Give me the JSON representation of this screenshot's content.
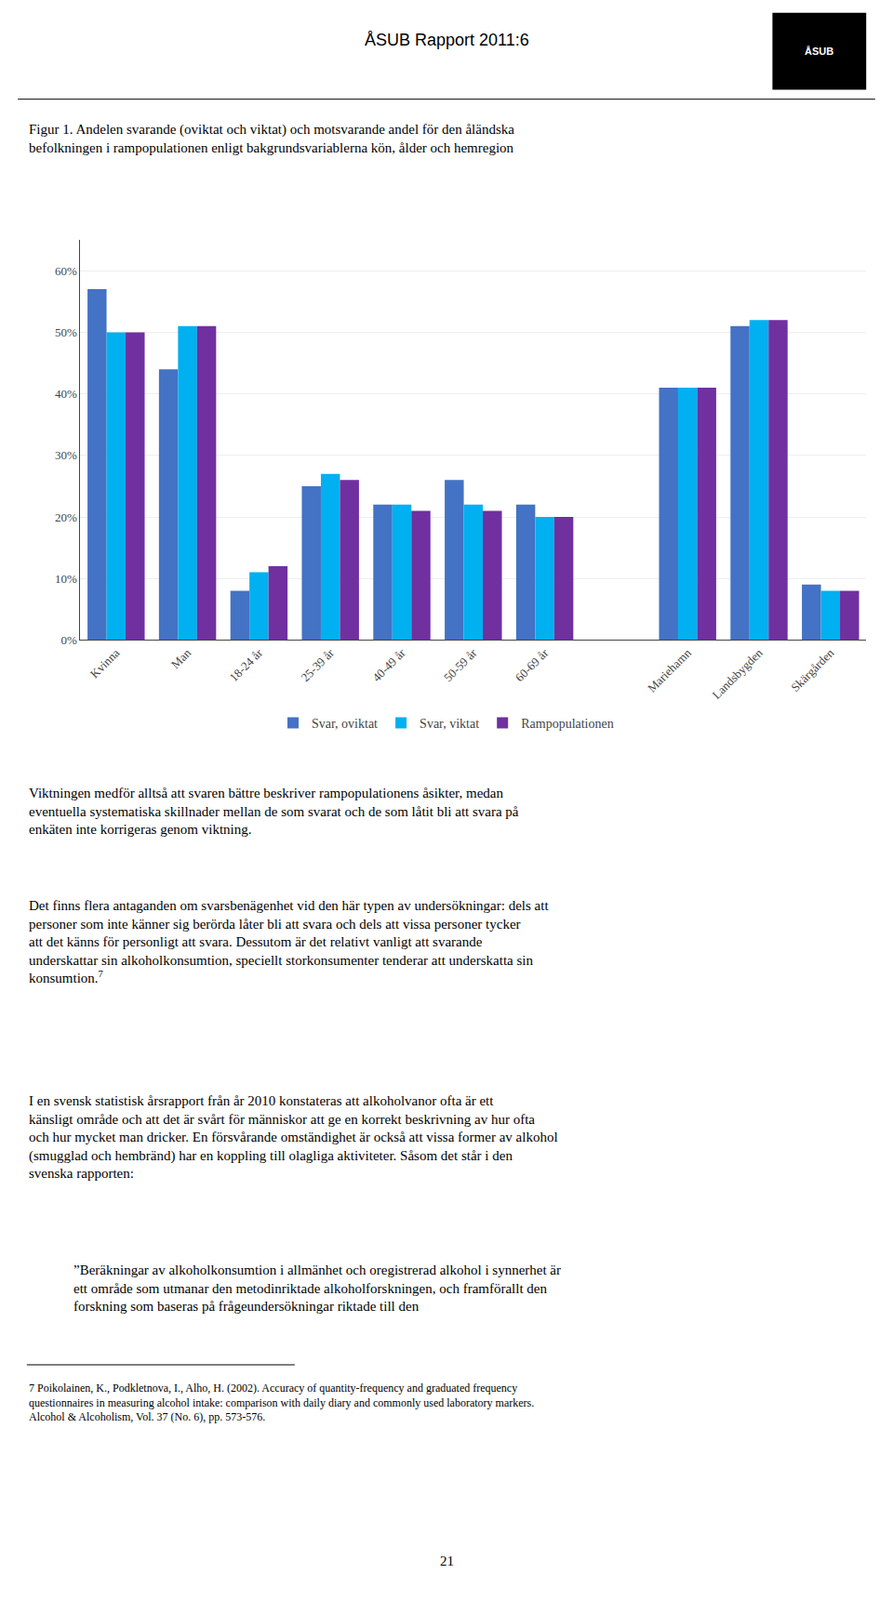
{
  "chart_data": {
    "type": "bar",
    "title": "Figur 1. Andelen svarande (oviktat och viktat) och motsvarande andel för den åländska befolkningen i rampopulationen enligt bakgrundsvariablerna kön, ålder och hemregion",
    "categories": [
      "Kvinna",
      "Man",
      "18-24 år",
      "25-39 år",
      "40-49 år",
      "50-59 år",
      "60-69 år",
      null,
      "Mariehamn",
      "Landsbygden",
      "Skärgården"
    ],
    "series": [
      {
        "name": "Svar, oviktat",
        "color": "#4472C4",
        "values": [
          0.57,
          0.44,
          0.08,
          0.25,
          0.22,
          0.26,
          0.22,
          null,
          0.41,
          0.51,
          0.09
        ]
      },
      {
        "name": "Svar, viktat",
        "color": "#00B0F0",
        "values": [
          0.5,
          0.51,
          0.11,
          0.27,
          0.22,
          0.22,
          0.2,
          null,
          0.41,
          0.52,
          0.08
        ]
      },
      {
        "name": "Rampopulationen",
        "color": "#7030A0",
        "values": [
          0.5,
          0.51,
          0.12,
          0.26,
          0.21,
          0.21,
          0.2,
          null,
          0.41,
          0.52,
          0.08
        ]
      }
    ],
    "ylim": [
      0,
      0.65
    ],
    "yticks": [
      {
        "value": 0.0,
        "label": "0%"
      },
      {
        "value": 0.1,
        "label": "10%"
      },
      {
        "value": 0.2,
        "label": "20%"
      },
      {
        "value": 0.3,
        "label": "30%"
      },
      {
        "value": 0.4,
        "label": "40%"
      },
      {
        "value": 0.5,
        "label": "50%"
      },
      {
        "value": 0.6,
        "label": "60%"
      }
    ],
    "grid": true,
    "legend": "bottom",
    "annotations": [
      "ÅSUB Rapport 2011:6",
      "ÅSUB",
      "Viktningen medför alltså att svaren bättre beskriver rampopulationens åsikter, medan eventuella systematiska skillnader mellan de som svarat och de som låtit bli att svara på enkäten inte korrigeras genom viktning.",
      "Det finns flera antaganden om svarsbenägenhet vid den här typen av undersökningar: dels att personer som inte känner sig berörda låter bli att svara och dels att vissa personer tycker att det känns för personligt att svara. Dessutom är det relativt vanligt att svarande underskattar sin alkoholkonsumtion, speciellt storkonsumenter tenderar att underskatta sin konsumtion.7",
      "I en svensk statistisk årsrapport från år 2010 konstateras att alkoholvanor ofta är ett känsligt område och att det är svårt för människor att ge en korrekt beskrivning av hur ofta och hur mycket man dricker. En försvårande omständighet är också att vissa former av alkohol (smugglad och hembränd) har en koppling till olagliga aktiviteter. Såsom det står i den svenska rapporten:",
      "”Beräkningar av alkoholkonsumtion i allmänhet och oregistrerad alkohol i synnerhet är ett område som utmanar den metodinriktade alkoholforskningen, och framförallt den forskning som baseras på frågeundersökningar riktade till den",
      "7 Poikolainen, K., Podkletnova, I., Alho, H. (2002). Accuracy of quantity-frequency and graduated frequency questionnaires in measuring alcohol intake: comparison with daily diary and commonly used laboratory markers. Alcohol & Alcoholism, Vol. 37 (No. 6), pp. 573-576.",
      "21"
    ]
  }
}
